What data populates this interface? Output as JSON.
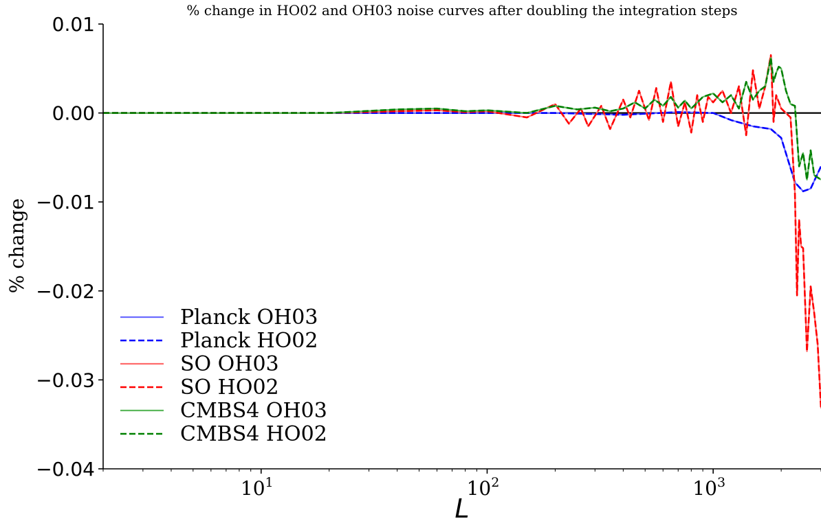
{
  "chart_data": {
    "type": "line",
    "title": "% change in HO02 and OH03 noise curves after doubling the integration steps",
    "xlabel": "L",
    "ylabel": "% change",
    "xscale": "log",
    "xlim": [
      2,
      3000
    ],
    "ylim": [
      -0.04,
      0.01
    ],
    "x_ticks": [
      {
        "value": 10,
        "label": "10",
        "exp": "1"
      },
      {
        "value": 100,
        "label": "10",
        "exp": "2"
      },
      {
        "value": 1000,
        "label": "10",
        "exp": "3"
      }
    ],
    "y_ticks": [
      {
        "value": 0.01,
        "label": "0.01"
      },
      {
        "value": 0.0,
        "label": "0.00"
      },
      {
        "value": -0.01,
        "label": "−0.01"
      },
      {
        "value": -0.02,
        "label": "−0.02"
      },
      {
        "value": -0.03,
        "label": "−0.03"
      },
      {
        "value": -0.04,
        "label": "−0.04"
      }
    ],
    "legend_position": "lower-left",
    "reference_line": {
      "y": 0.0,
      "color": "#000000"
    },
    "series": [
      {
        "name": "Planck OH03",
        "color": "#6b6bff",
        "dash": "solid",
        "x": [
          2,
          10,
          50,
          100,
          200,
          400,
          700,
          1000,
          1200,
          1500,
          1800,
          2000,
          2300,
          2500,
          2700,
          3000
        ],
        "y": [
          0.0,
          0.0,
          0.0,
          0.0,
          0.0,
          -0.0002,
          0.0001,
          0.0,
          -0.0008,
          -0.0015,
          -0.0018,
          -0.0028,
          -0.0078,
          -0.0088,
          -0.0085,
          -0.006
        ]
      },
      {
        "name": "Planck HO02",
        "color": "#0000ff",
        "dash": "dashed",
        "x": [
          2,
          10,
          50,
          100,
          200,
          400,
          700,
          1000,
          1200,
          1500,
          1800,
          2000,
          2300,
          2500,
          2700,
          3000
        ],
        "y": [
          0.0,
          0.0,
          0.0,
          0.0,
          0.0,
          -0.0002,
          0.0001,
          0.0,
          -0.0008,
          -0.0015,
          -0.0018,
          -0.0028,
          -0.0078,
          -0.0088,
          -0.0085,
          -0.006
        ]
      },
      {
        "name": "SO OH03",
        "color": "#ff6b6b",
        "dash": "solid",
        "x": [
          2,
          10,
          20,
          40,
          60,
          80,
          100,
          150,
          200,
          230,
          260,
          280,
          320,
          350,
          400,
          430,
          470,
          520,
          560,
          600,
          650,
          700,
          750,
          800,
          850,
          900,
          950,
          1000,
          1100,
          1200,
          1300,
          1400,
          1500,
          1600,
          1700,
          1800,
          1850,
          1900,
          2000,
          2200,
          2300,
          2350,
          2400,
          2450,
          2500,
          2600,
          2700,
          2800,
          2900,
          3000
        ],
        "y": [
          0.0,
          0.0,
          0.0,
          0.0002,
          0.0003,
          0.0001,
          0.0002,
          -0.0005,
          0.001,
          -0.0012,
          0.0005,
          -0.0015,
          0.0008,
          -0.0018,
          0.0015,
          -0.0005,
          0.0025,
          -0.0008,
          0.0028,
          -0.001,
          0.0035,
          -0.0015,
          0.0012,
          -0.0022,
          0.002,
          -0.001,
          0.0018,
          0.0012,
          0.0025,
          0.0,
          0.003,
          -0.0025,
          0.0048,
          0.0005,
          0.003,
          0.0065,
          -0.001,
          0.002,
          0.0005,
          -0.0005,
          -0.009,
          -0.0205,
          -0.012,
          -0.015,
          -0.0152,
          -0.0268,
          -0.0195,
          -0.0225,
          -0.026,
          -0.0332
        ]
      },
      {
        "name": "SO HO02",
        "color": "#ff0000",
        "dash": "dashed",
        "x": [
          2,
          10,
          20,
          40,
          60,
          80,
          100,
          150,
          200,
          230,
          260,
          280,
          320,
          350,
          400,
          430,
          470,
          520,
          560,
          600,
          650,
          700,
          750,
          800,
          850,
          900,
          950,
          1000,
          1100,
          1200,
          1300,
          1400,
          1500,
          1600,
          1700,
          1800,
          1850,
          1900,
          2000,
          2200,
          2300,
          2350,
          2400,
          2450,
          2500,
          2600,
          2700,
          2800,
          2900,
          3000
        ],
        "y": [
          0.0,
          0.0,
          0.0,
          0.0002,
          0.0003,
          0.0001,
          0.0002,
          -0.0005,
          0.001,
          -0.0012,
          0.0005,
          -0.0015,
          0.0008,
          -0.0018,
          0.0015,
          -0.0005,
          0.0025,
          -0.0008,
          0.0028,
          -0.001,
          0.0035,
          -0.0015,
          0.0012,
          -0.0022,
          0.002,
          -0.001,
          0.0018,
          0.0012,
          0.0025,
          0.0,
          0.003,
          -0.0025,
          0.0048,
          0.0005,
          0.003,
          0.0065,
          -0.001,
          0.002,
          0.0005,
          -0.0005,
          -0.009,
          -0.0205,
          -0.012,
          -0.015,
          -0.0152,
          -0.0268,
          -0.0195,
          -0.0225,
          -0.026,
          -0.0332
        ]
      },
      {
        "name": "CMBS4 OH03",
        "color": "#5cb85c",
        "dash": "solid",
        "x": [
          2,
          10,
          20,
          40,
          60,
          80,
          100,
          150,
          200,
          250,
          300,
          350,
          400,
          450,
          500,
          550,
          600,
          650,
          700,
          750,
          800,
          900,
          1000,
          1100,
          1200,
          1300,
          1400,
          1500,
          1600,
          1700,
          1800,
          1850,
          1900,
          1950,
          2000,
          2100,
          2200,
          2300,
          2400,
          2500,
          2600,
          2700,
          2800,
          3000
        ],
        "y": [
          0.0,
          0.0,
          0.0,
          0.0004,
          0.0005,
          0.0002,
          0.0003,
          0.0,
          0.0008,
          0.0004,
          0.0006,
          0.0002,
          0.0005,
          0.0012,
          0.0005,
          0.0015,
          0.0008,
          0.0018,
          0.0006,
          0.0014,
          0.0005,
          0.0018,
          0.0022,
          0.0012,
          0.002,
          0.0005,
          0.0035,
          0.0015,
          0.0025,
          0.003,
          0.0062,
          0.0035,
          0.0045,
          0.0052,
          0.005,
          0.0025,
          0.001,
          0.0008,
          -0.006,
          -0.0045,
          -0.0075,
          -0.0042,
          -0.007,
          -0.0075
        ]
      },
      {
        "name": "CMBS4 HO02",
        "color": "#008000",
        "dash": "dashed",
        "x": [
          2,
          10,
          20,
          40,
          60,
          80,
          100,
          150,
          200,
          250,
          300,
          350,
          400,
          450,
          500,
          550,
          600,
          650,
          700,
          750,
          800,
          900,
          1000,
          1100,
          1200,
          1300,
          1400,
          1500,
          1600,
          1700,
          1800,
          1850,
          1900,
          1950,
          2000,
          2100,
          2200,
          2300,
          2400,
          2500,
          2600,
          2700,
          2800,
          3000
        ],
        "y": [
          0.0,
          0.0,
          0.0,
          0.0004,
          0.0005,
          0.0002,
          0.0003,
          0.0,
          0.0008,
          0.0004,
          0.0006,
          0.0002,
          0.0005,
          0.0012,
          0.0005,
          0.0015,
          0.0008,
          0.0018,
          0.0006,
          0.0014,
          0.0005,
          0.0018,
          0.0022,
          0.0012,
          0.002,
          0.0005,
          0.0035,
          0.0015,
          0.0025,
          0.003,
          0.0062,
          0.0035,
          0.0045,
          0.0052,
          0.005,
          0.0025,
          0.001,
          0.0008,
          -0.006,
          -0.0045,
          -0.0075,
          -0.0042,
          -0.007,
          -0.0075
        ]
      }
    ]
  }
}
